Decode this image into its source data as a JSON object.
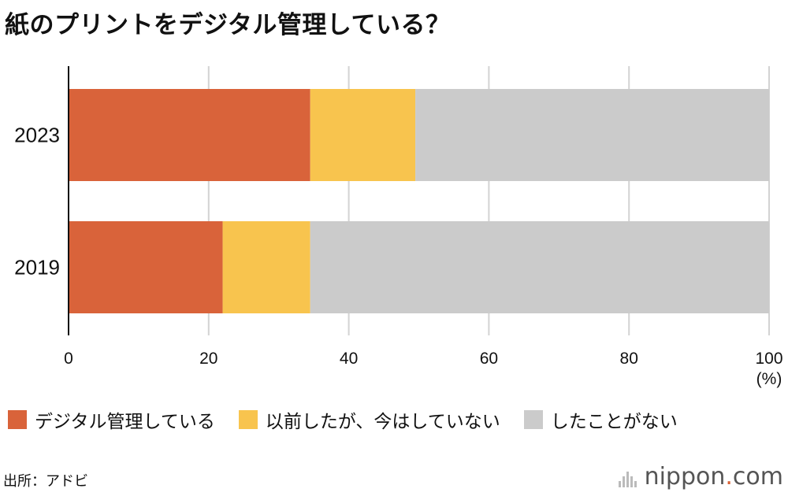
{
  "title": "紙のプリントをデジタル管理している？",
  "chart_data": {
    "type": "bar",
    "orientation": "horizontal",
    "stacked": true,
    "categories": [
      "2023",
      "2019"
    ],
    "series": [
      {
        "name": "デジタル管理している",
        "color": "#d9633a",
        "values": [
          34.5,
          22.0
        ]
      },
      {
        "name": "以前したが、今はしていない",
        "color": "#f8c44e",
        "values": [
          15.0,
          12.5
        ]
      },
      {
        "name": "したことがない",
        "color": "#cbcbcb",
        "values": [
          50.5,
          65.5
        ]
      }
    ],
    "xlim": [
      0,
      100
    ],
    "xticks": [
      "0",
      "20",
      "40",
      "60",
      "80",
      "100"
    ],
    "xunit": "(%)",
    "grid": true,
    "legend_position": "bottom"
  },
  "source": "出所：アドビ",
  "brand": {
    "name": "nippon",
    "dot": ".",
    "tld": "com",
    "accent": "#d95f33"
  }
}
